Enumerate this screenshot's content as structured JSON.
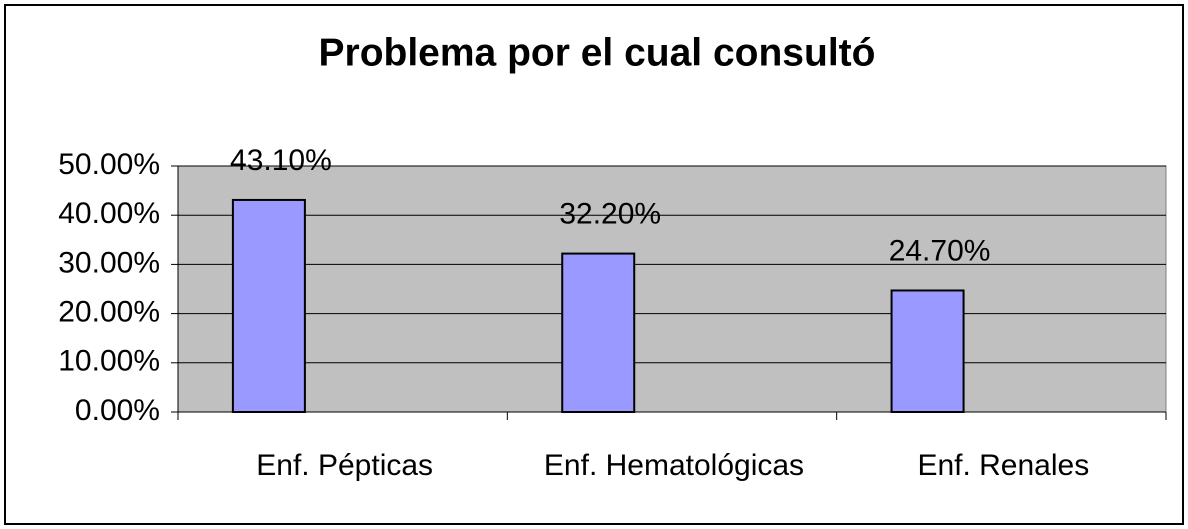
{
  "chart_data": {
    "type": "bar",
    "title": "Problema por el cual consultó",
    "categories": [
      "Enf. Pépticas",
      "Enf. Hematológicas",
      "Enf. Renales"
    ],
    "values": [
      43.1,
      32.2,
      24.7
    ],
    "value_labels": [
      "43.10%",
      "32.20%",
      "24.70%"
    ],
    "color": "#9999ff",
    "ylim": [
      0,
      50
    ],
    "yticks": [
      {
        "value": 0,
        "label": "0.00%"
      },
      {
        "value": 10,
        "label": "10.00%"
      },
      {
        "value": 20,
        "label": "20.00%"
      },
      {
        "value": 30,
        "label": "30.00%"
      },
      {
        "value": 40,
        "label": "40.00%"
      },
      {
        "value": 50,
        "label": "50.00%"
      }
    ],
    "grid": true
  }
}
